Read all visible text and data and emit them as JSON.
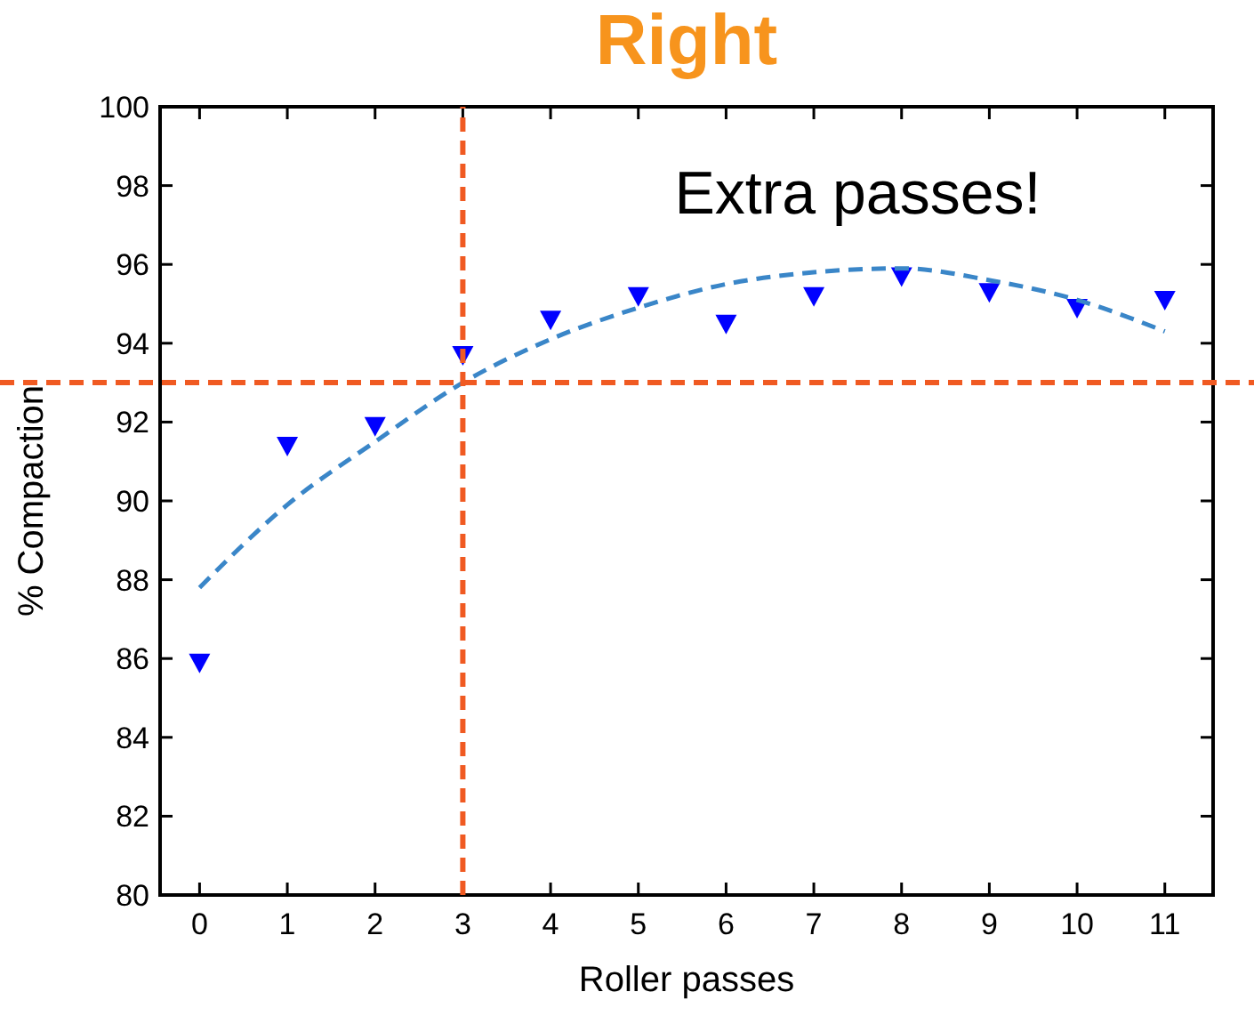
{
  "chart_data": {
    "type": "scatter",
    "title": "Right",
    "xlabel": "Roller passes",
    "ylabel": "% Compaction",
    "x": [
      0,
      1,
      2,
      3,
      4,
      5,
      6,
      7,
      8,
      9,
      10,
      11
    ],
    "series": [
      {
        "type": "scatter",
        "color": "#0000ff",
        "marker": "triangle",
        "values": [
          85.9,
          91.4,
          91.9,
          93.7,
          94.6,
          95.2,
          94.5,
          95.2,
          95.7,
          95.3,
          94.9,
          95.1
        ]
      },
      {
        "type": "line",
        "color": "#3a86c8",
        "line_style": "dashed",
        "marker": "none",
        "values": [
          87.8,
          89.9,
          91.5,
          93.0,
          94.1,
          94.9,
          95.5,
          95.8,
          95.9,
          95.6,
          95.1,
          94.3
        ]
      }
    ],
    "xlim": [
      -0.45,
      11.55
    ],
    "xticks": [
      0,
      1,
      2,
      3,
      4,
      5,
      6,
      7,
      8,
      9,
      10,
      11
    ],
    "ylim": [
      80,
      100
    ],
    "yticks": [
      80,
      82,
      84,
      86,
      88,
      90,
      92,
      94,
      96,
      98,
      100
    ],
    "ref_lines": [
      {
        "axis": "x",
        "value": 3,
        "color": "#f05a22",
        "line_style": "dashed"
      },
      {
        "axis": "y",
        "value": 93,
        "color": "#f05a22",
        "line_style": "dashed"
      }
    ],
    "annotations": [
      "Extra passes!"
    ],
    "grid": false
  }
}
